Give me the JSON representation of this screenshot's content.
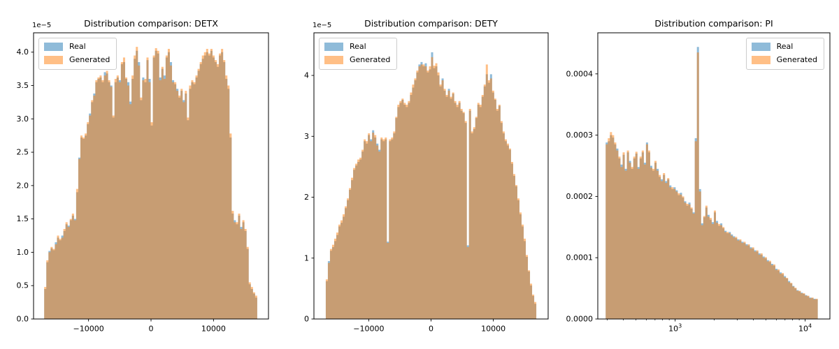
{
  "figure": {
    "background": "#ffffff",
    "description": "Three overlaid histograms comparing Real vs Generated distributions"
  },
  "colors": {
    "real": "#1f77b4",
    "generated": "#ff7f0e",
    "alpha": 0.5,
    "overlap_appearance": "#c69b70",
    "spine": "#000000",
    "legend_border": "#cccccc"
  },
  "chart_data": [
    {
      "type": "bar",
      "subtype": "overlaid-histogram",
      "title": "Distribution comparison: DETX",
      "y_offset_label": "1e−5",
      "xscale": "linear",
      "xlim": [
        -18800,
        18800
      ],
      "ylim": [
        0,
        4.29
      ],
      "value_unit": "1e-5",
      "bin_start": -17100,
      "bin_end": 17000,
      "grid": false,
      "legend_position": "upper-left",
      "xticks": {
        "values": [
          -10000,
          0,
          10000
        ],
        "labels": [
          "−10000",
          "0",
          "10000"
        ]
      },
      "minor_xticks": [],
      "yticks": {
        "values": [
          0,
          0.5,
          1.0,
          1.5,
          2.0,
          2.5,
          3.0,
          3.5,
          4.0
        ],
        "labels": [
          "0.0",
          "0.5",
          "1.0",
          "1.5",
          "2.0",
          "2.5",
          "3.0",
          "3.5",
          "4.0"
        ]
      },
      "series": [
        {
          "name": "Real",
          "color": "#1f77b4",
          "values": [
            0.45,
            0.85,
            1.02,
            1.06,
            1.03,
            1.15,
            1.22,
            1.18,
            1.25,
            1.32,
            1.42,
            1.4,
            1.48,
            1.55,
            1.5,
            1.9,
            2.42,
            2.72,
            2.7,
            2.75,
            2.92,
            3.08,
            3.25,
            3.38,
            3.55,
            3.6,
            3.62,
            3.55,
            3.7,
            3.68,
            3.55,
            3.5,
            3.02,
            3.55,
            3.62,
            3.58,
            3.82,
            3.85,
            3.6,
            3.55,
            3.26,
            3.6,
            3.9,
            4.02,
            3.85,
            3.28,
            3.62,
            3.55,
            3.88,
            3.6,
            2.9,
            3.92,
            4.02,
            3.98,
            3.62,
            3.75,
            3.65,
            3.92,
            4.0,
            3.85,
            3.58,
            3.52,
            3.45,
            3.32,
            3.42,
            3.28,
            3.38,
            2.98,
            3.45,
            3.55,
            3.52,
            3.62,
            3.72,
            3.82,
            3.9,
            3.95,
            4.0,
            3.95,
            4.02,
            3.92,
            3.85,
            3.78,
            3.95,
            4.0,
            3.85,
            3.6,
            3.45,
            2.72,
            1.58,
            1.48,
            1.42,
            1.55,
            1.38,
            1.45,
            1.32,
            1.05,
            0.52,
            0.45,
            0.38,
            0.32
          ]
        },
        {
          "name": "Generated",
          "color": "#ff7f0e",
          "values": [
            0.48,
            0.88,
            1.0,
            1.08,
            1.05,
            1.12,
            1.25,
            1.2,
            1.22,
            1.35,
            1.45,
            1.38,
            1.5,
            1.58,
            1.48,
            1.95,
            2.4,
            2.75,
            2.72,
            2.78,
            2.95,
            3.05,
            3.28,
            3.35,
            3.58,
            3.62,
            3.65,
            3.58,
            3.65,
            3.72,
            3.58,
            3.48,
            3.05,
            3.6,
            3.65,
            3.55,
            3.85,
            3.92,
            3.62,
            3.5,
            3.22,
            3.65,
            3.95,
            4.08,
            3.8,
            3.32,
            3.58,
            3.6,
            3.92,
            3.55,
            2.95,
            3.95,
            4.06,
            4.02,
            3.58,
            3.78,
            3.6,
            3.95,
            4.05,
            3.8,
            3.55,
            3.55,
            3.42,
            3.35,
            3.45,
            3.25,
            3.42,
            3.02,
            3.5,
            3.58,
            3.55,
            3.65,
            3.75,
            3.85,
            3.95,
            4.0,
            4.05,
            3.98,
            4.05,
            3.95,
            3.88,
            3.82,
            3.98,
            4.05,
            3.88,
            3.65,
            3.5,
            2.78,
            1.62,
            1.45,
            1.45,
            1.58,
            1.35,
            1.48,
            1.35,
            1.08,
            0.55,
            0.48,
            0.4,
            0.35
          ]
        }
      ]
    },
    {
      "type": "bar",
      "subtype": "overlaid-histogram",
      "title": "Distribution comparison: DETY",
      "y_offset_label": "1e−5",
      "xscale": "linear",
      "xlim": [
        -18800,
        18800
      ],
      "ylim": [
        0,
        4.7
      ],
      "value_unit": "1e-5",
      "bin_start": -16900,
      "bin_end": 16900,
      "grid": false,
      "legend_position": "upper-left",
      "xticks": {
        "values": [
          -10000,
          0,
          10000
        ],
        "labels": [
          "−10000",
          "0",
          "10000"
        ]
      },
      "minor_xticks": [],
      "yticks": {
        "values": [
          0,
          1,
          2,
          3,
          4
        ],
        "labels": [
          "0",
          "1",
          "2",
          "3",
          "4"
        ]
      },
      "series": [
        {
          "name": "Real",
          "color": "#1f77b4",
          "values": [
            0.62,
            0.95,
            1.12,
            1.18,
            1.28,
            1.38,
            1.52,
            1.58,
            1.68,
            1.82,
            1.95,
            2.12,
            2.28,
            2.45,
            2.52,
            2.58,
            2.62,
            2.75,
            2.92,
            2.88,
            3.02,
            2.95,
            3.1,
            2.98,
            2.88,
            2.78,
            2.95,
            2.92,
            2.95,
            1.27,
            2.92,
            2.95,
            3.05,
            3.3,
            3.48,
            3.55,
            3.6,
            3.52,
            3.48,
            3.55,
            3.68,
            3.8,
            3.92,
            4.05,
            4.18,
            4.22,
            4.15,
            4.2,
            4.05,
            4.1,
            4.38,
            4.12,
            4.15,
            4.0,
            3.82,
            3.95,
            3.75,
            3.65,
            3.78,
            3.62,
            3.7,
            3.55,
            3.48,
            3.55,
            3.42,
            3.38,
            3.22,
            1.21,
            3.42,
            3.05,
            3.12,
            3.3,
            3.52,
            3.48,
            3.65,
            3.82,
            4.02,
            3.88,
            4.02,
            3.72,
            3.6,
            3.42,
            3.5,
            3.22,
            3.05,
            2.92,
            2.85,
            2.78,
            2.55,
            2.35,
            2.18,
            1.95,
            1.72,
            1.52,
            1.28,
            1.02,
            0.78,
            0.55,
            0.38,
            0.25
          ]
        },
        {
          "name": "Generated",
          "color": "#ff7f0e",
          "values": [
            0.65,
            0.92,
            1.15,
            1.22,
            1.32,
            1.42,
            1.55,
            1.62,
            1.72,
            1.85,
            1.98,
            2.15,
            2.32,
            2.48,
            2.55,
            2.62,
            2.65,
            2.78,
            2.95,
            2.92,
            3.05,
            2.92,
            3.06,
            3.02,
            2.85,
            2.75,
            2.98,
            2.95,
            2.98,
            1.25,
            2.95,
            2.98,
            3.08,
            3.32,
            3.52,
            3.58,
            3.62,
            3.55,
            3.52,
            3.58,
            3.72,
            3.85,
            3.95,
            4.08,
            4.15,
            4.18,
            4.18,
            4.15,
            4.08,
            4.15,
            4.3,
            4.16,
            4.2,
            4.05,
            3.85,
            3.92,
            3.78,
            3.68,
            3.75,
            3.65,
            3.72,
            3.58,
            3.52,
            3.58,
            3.45,
            3.4,
            3.25,
            1.18,
            3.45,
            3.08,
            3.15,
            3.32,
            3.55,
            3.52,
            3.68,
            3.85,
            4.18,
            3.92,
            3.95,
            3.75,
            3.62,
            3.45,
            3.52,
            3.25,
            3.08,
            2.95,
            2.88,
            2.8,
            2.58,
            2.38,
            2.2,
            1.98,
            1.75,
            1.55,
            1.32,
            1.05,
            0.8,
            0.58,
            0.4,
            0.28
          ]
        }
      ]
    },
    {
      "type": "bar",
      "subtype": "overlaid-histogram",
      "title": "Distribution comparison: PI",
      "y_offset_label": "",
      "xscale": "log",
      "xlim": [
        254,
        15500
      ],
      "ylim": [
        0,
        4.67
      ],
      "value_unit": "1e-4",
      "bin_start": 292,
      "bin_end": 12500,
      "grid": false,
      "legend_position": "upper-right",
      "xticks": {
        "values": [
          1000,
          10000
        ],
        "labels": [
          "10^3",
          "10^4"
        ]
      },
      "minor_xticks": [
        300,
        400,
        500,
        600,
        700,
        800,
        900,
        2000,
        3000,
        4000,
        5000,
        6000,
        7000,
        8000,
        9000
      ],
      "yticks": {
        "values": [
          0,
          1,
          2,
          3,
          4
        ],
        "labels": [
          "0.0000",
          "0.0001",
          "0.0002",
          "0.0003",
          "0.0004"
        ]
      },
      "series": [
        {
          "name": "Real",
          "color": "#1f77b4",
          "values": [
            2.88,
            2.9,
            3.0,
            2.96,
            2.85,
            2.78,
            2.62,
            2.52,
            2.68,
            2.45,
            2.72,
            2.58,
            2.45,
            2.62,
            2.7,
            2.48,
            2.62,
            2.72,
            2.55,
            2.88,
            2.72,
            2.5,
            2.42,
            2.55,
            2.45,
            2.32,
            2.28,
            2.35,
            2.25,
            2.28,
            2.18,
            2.12,
            2.15,
            2.1,
            2.02,
            2.06,
            1.98,
            1.92,
            1.85,
            1.9,
            1.8,
            1.74,
            2.95,
            4.44,
            2.12,
            1.56,
            1.66,
            1.82,
            1.7,
            1.62,
            1.58,
            1.74,
            1.6,
            1.52,
            1.56,
            1.48,
            1.44,
            1.4,
            1.42,
            1.38,
            1.35,
            1.32,
            1.3,
            1.28,
            1.26,
            1.24,
            1.22,
            1.2,
            1.17,
            1.15,
            1.12,
            1.1,
            1.07,
            1.05,
            1.02,
            0.99,
            0.96,
            0.93,
            0.9,
            0.87,
            0.82,
            0.79,
            0.76,
            0.73,
            0.7,
            0.66,
            0.62,
            0.58,
            0.54,
            0.5,
            0.47,
            0.45,
            0.43,
            0.41,
            0.39,
            0.37,
            0.35,
            0.34,
            0.33,
            0.32
          ]
        },
        {
          "name": "Generated",
          "color": "#ff7f0e",
          "values": [
            2.85,
            2.95,
            3.05,
            3.0,
            2.88,
            2.75,
            2.65,
            2.48,
            2.72,
            2.42,
            2.75,
            2.55,
            2.48,
            2.65,
            2.73,
            2.45,
            2.65,
            2.75,
            2.52,
            2.85,
            2.75,
            2.47,
            2.45,
            2.58,
            2.42,
            2.35,
            2.25,
            2.38,
            2.22,
            2.3,
            2.15,
            2.15,
            2.12,
            2.08,
            2.05,
            2.03,
            2.0,
            1.9,
            1.88,
            1.87,
            1.82,
            1.72,
            2.9,
            4.35,
            2.08,
            1.53,
            1.68,
            1.85,
            1.67,
            1.65,
            1.55,
            1.77,
            1.57,
            1.55,
            1.53,
            1.5,
            1.42,
            1.42,
            1.4,
            1.36,
            1.33,
            1.34,
            1.28,
            1.3,
            1.24,
            1.26,
            1.2,
            1.22,
            1.15,
            1.17,
            1.1,
            1.12,
            1.05,
            1.07,
            1.0,
            1.01,
            0.94,
            0.95,
            0.88,
            0.89,
            0.8,
            0.81,
            0.74,
            0.75,
            0.68,
            0.67,
            0.6,
            0.59,
            0.53,
            0.51,
            0.46,
            0.46,
            0.42,
            0.42,
            0.38,
            0.38,
            0.34,
            0.35,
            0.32,
            0.33
          ]
        }
      ]
    }
  ]
}
